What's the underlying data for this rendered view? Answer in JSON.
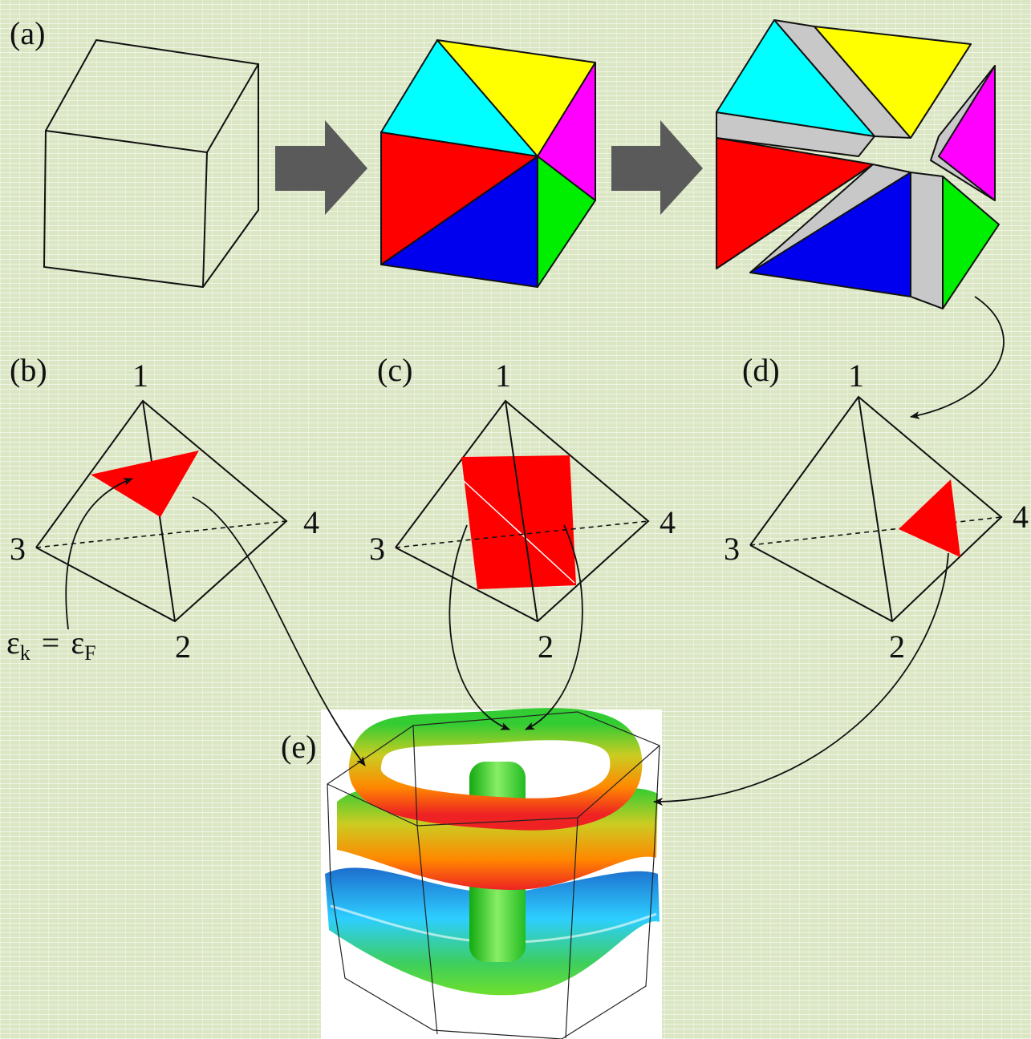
{
  "panels": [
    {
      "label": "(a)"
    },
    {
      "label": "(b)",
      "vertices": [
        "1",
        "2",
        "3",
        "4"
      ],
      "annotation": {
        "lhs": "ε",
        "lhs_sub": "k",
        "eq": "=",
        "rhs": "ε",
        "rhs_sub": "F"
      }
    },
    {
      "label": "(c)",
      "vertices": [
        "1",
        "2",
        "3",
        "4"
      ]
    },
    {
      "label": "(d)",
      "vertices": [
        "1",
        "2",
        "3",
        "4"
      ]
    },
    {
      "label": "(e)"
    }
  ]
}
